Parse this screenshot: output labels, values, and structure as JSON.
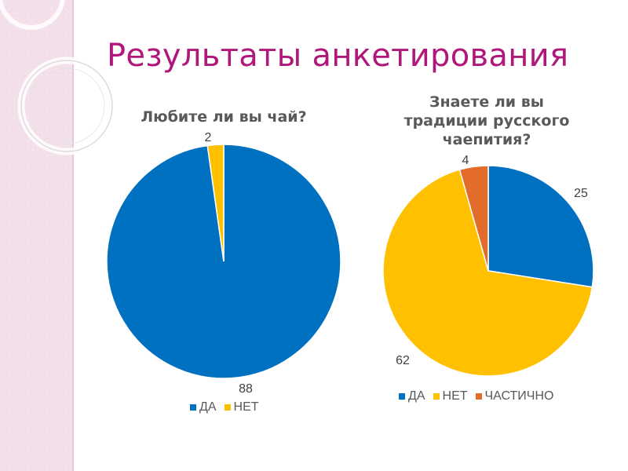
{
  "title": "Результаты анкетирования",
  "colors": {
    "da": "#0070C0",
    "net": "#FFC000",
    "partial": "#E36C2A",
    "title": "#B0177A"
  },
  "chart_data": [
    {
      "type": "pie",
      "title": "Любите ли вы чай?",
      "categories": [
        "ДА",
        "НЕТ"
      ],
      "values": [
        88,
        2
      ],
      "legend": "bottom"
    },
    {
      "type": "pie",
      "title": "Знаете ли вы традиции русского чаепития?",
      "title_lines": [
        "Знаете ли вы",
        "традиции русского",
        "чаепития?"
      ],
      "categories": [
        "ДА",
        "НЕТ",
        "ЧАСТИЧНО"
      ],
      "values": [
        25,
        62,
        4
      ],
      "legend": "bottom"
    }
  ]
}
